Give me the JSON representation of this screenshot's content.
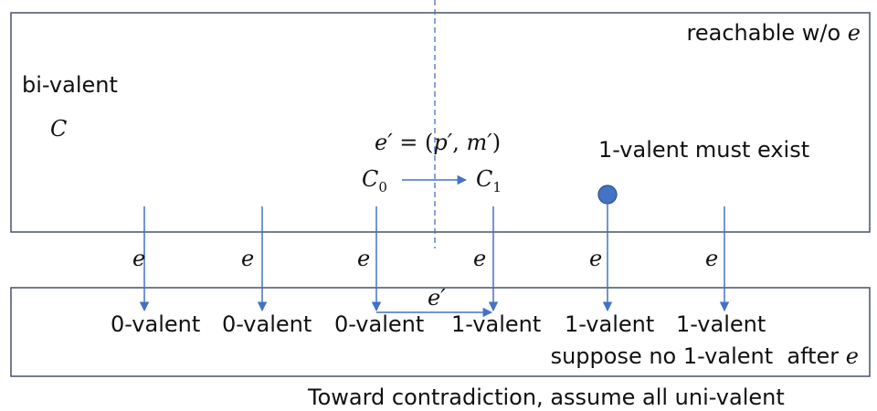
{
  "top_region": {
    "corner_label": "reachable w/o",
    "corner_event": "e",
    "bivalent_label": "bi-valent",
    "config_label": "C",
    "event_def": {
      "lhs": "e′",
      "equals": " = (",
      "p": "p′",
      "comma": ", ",
      "m": "m′",
      "close": ")"
    },
    "c0": {
      "base": "C",
      "sub": "0"
    },
    "c1": {
      "base": "C",
      "sub": "1"
    },
    "one_valent_note": "1-valent must exist",
    "accent_color": "#4472c4"
  },
  "edges": [
    {
      "label": "e"
    },
    {
      "label": "e"
    },
    {
      "label": "e"
    },
    {
      "label": "e"
    },
    {
      "label": "e"
    },
    {
      "label": "e"
    }
  ],
  "bottom_region": {
    "states": [
      "0-valent",
      "0-valent",
      "0-valent",
      "1-valent",
      "1-valent",
      "1-valent"
    ],
    "connector_label": "e′",
    "note": "suppose no 1-valent  after",
    "note_event": "e"
  },
  "footer": "Toward contradiction, assume all uni-valent"
}
